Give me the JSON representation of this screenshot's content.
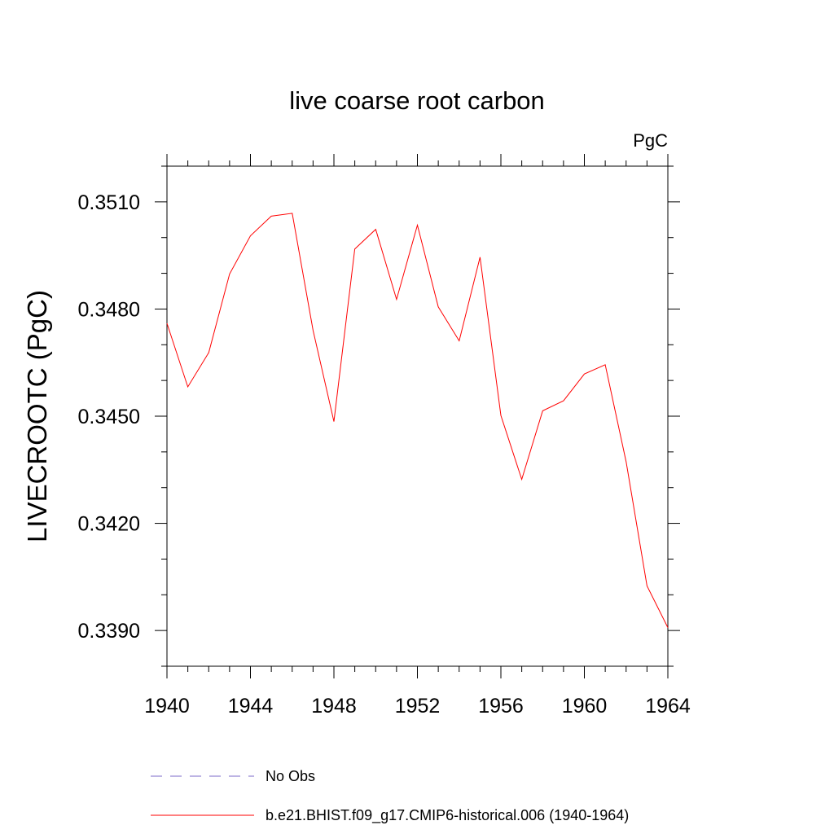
{
  "chart_data": {
    "type": "line",
    "title": "live coarse root carbon",
    "units": "PgC",
    "ylabel": "LIVECROOTC  (PgC)",
    "xlabel": "",
    "xlim": [
      1940,
      1964
    ],
    "ylim": [
      3380,
      3520
    ],
    "x_ticks": [
      1940,
      1944,
      1948,
      1952,
      1956,
      1960,
      1964
    ],
    "y_ticks": [
      3390,
      3420,
      3450,
      3480,
      3510
    ],
    "x_tick_labels": [
      "1940",
      "1944",
      "1948",
      "1952",
      "1956",
      "1960",
      "1964"
    ],
    "y_tick_labels": [
      "0.3390",
      "0.3420",
      "0.3450",
      "0.3480",
      "0.3510"
    ],
    "y_scale_note": "y values are in units of 1e-4 PgC (3476 = 0.3476 PgC)",
    "grid": false,
    "legend_position": "bottom",
    "series": [
      {
        "name": "No Obs",
        "color": "#7b68c8",
        "dash": "dashed",
        "x": [],
        "values": []
      },
      {
        "name": "b.e21.BHIST.f09_g17.CMIP6-historical.006 (1940-1964)",
        "color": "#ff0000",
        "dash": "solid",
        "x": [
          1940,
          1941,
          1942,
          1943,
          1944,
          1945,
          1946,
          1947,
          1948,
          1949,
          1950,
          1951,
          1952,
          1953,
          1954,
          1955,
          1956,
          1957,
          1958,
          1959,
          1960,
          1961,
          1962,
          1963,
          1964
        ],
        "values": [
          3476.0,
          3458.2,
          3467.8,
          3489.8,
          3500.5,
          3506.0,
          3506.8,
          3474.0,
          3448.5,
          3496.8,
          3502.3,
          3482.7,
          3503.5,
          3480.6,
          3471.1,
          3494.5,
          3450.2,
          3432.3,
          3451.5,
          3454.3,
          3461.8,
          3464.4,
          3437.2,
          3402.5,
          3390.8
        ]
      }
    ]
  }
}
